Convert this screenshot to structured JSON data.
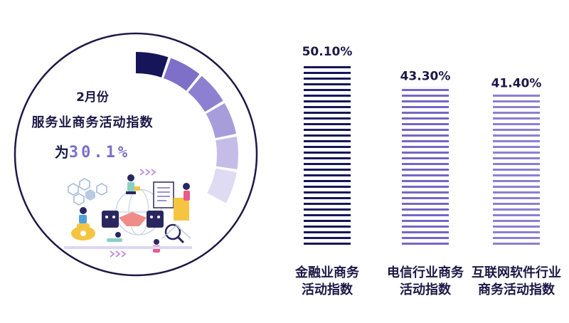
{
  "infographic": {
    "month_label": "2月份",
    "index_label": "服务业商务活动指数",
    "value_prefix": "为",
    "value_text": "30.1%",
    "arc_colors": [
      "#161559",
      "#7e6fc9",
      "#8d80d0",
      "#a79ddb",
      "#c5bde7",
      "#dedbf2"
    ]
  },
  "chart_data": {
    "type": "bar",
    "categories": [
      "金融业商务活动指数",
      "电信行业商务活动指数",
      "互联网软件行业商务活动指数"
    ],
    "category_lines": [
      [
        "金融业商务",
        "活动指数"
      ],
      [
        "电信行业商务",
        "活动指数"
      ],
      [
        "互联网软件行业",
        "商务活动指数"
      ]
    ],
    "values": [
      50.1,
      43.3,
      41.4
    ],
    "value_labels": [
      "50.10%",
      "43.30%",
      "41.40%"
    ],
    "colors": [
      "#161559",
      "#7566c4",
      "#8c7fd2"
    ],
    "title": "",
    "xlabel": "",
    "ylabel": "",
    "ylim": [
      0,
      50.1
    ],
    "grid": false,
    "legend": false
  }
}
